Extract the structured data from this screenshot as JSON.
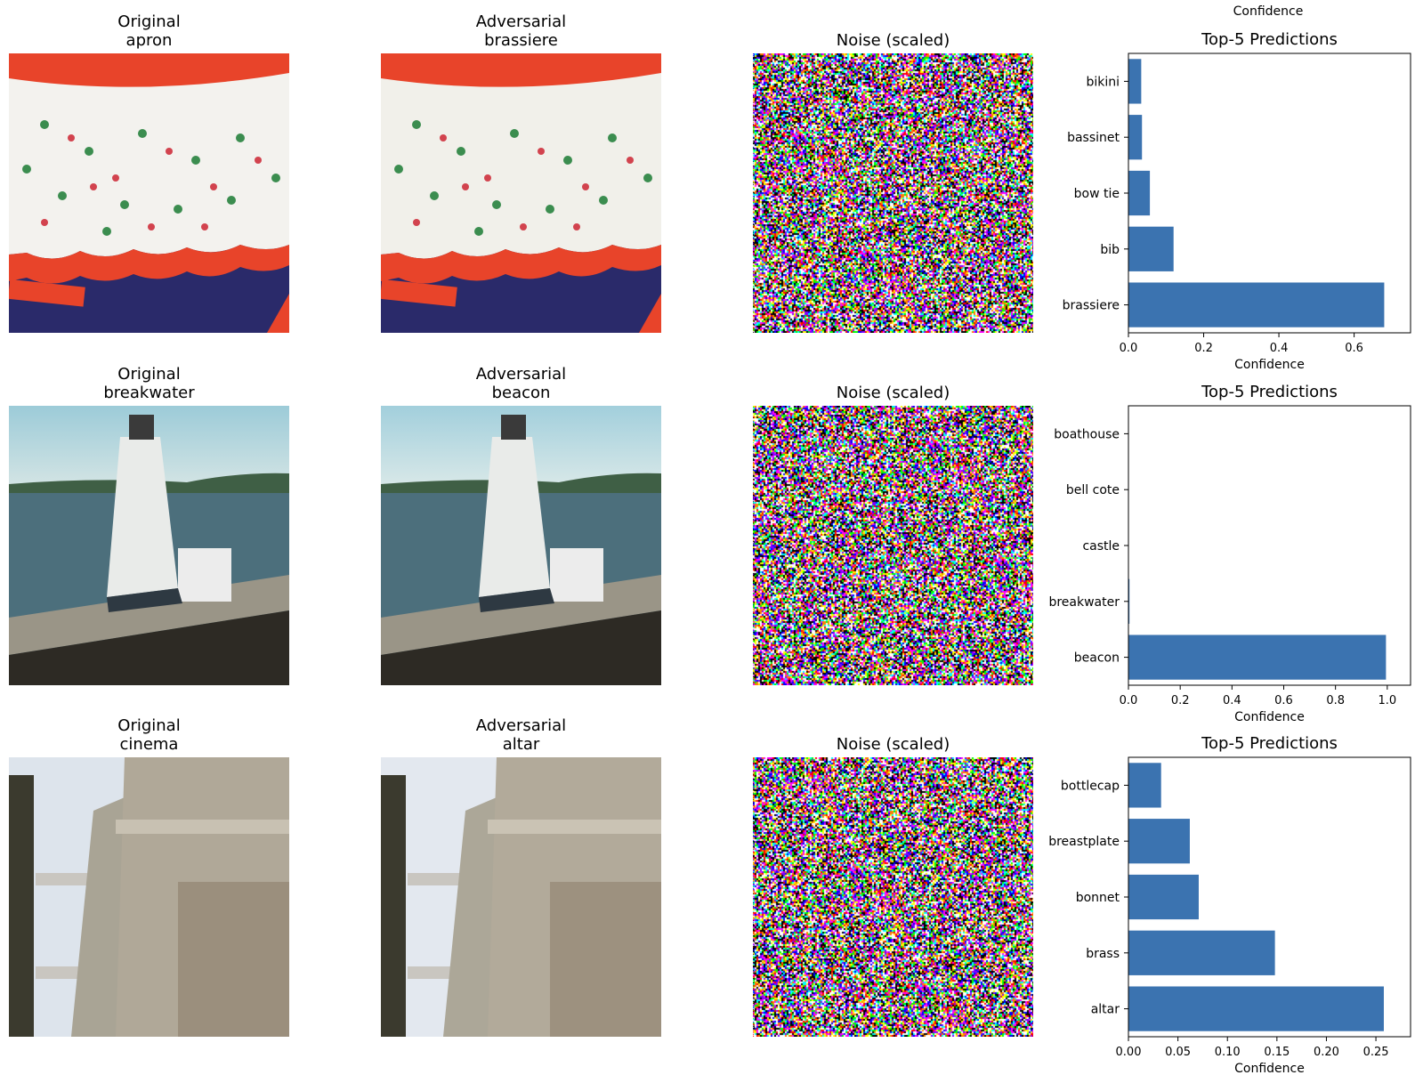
{
  "figure": {
    "top_partial_xlabel": "Confidence",
    "rows": [
      {
        "original_title": "Original\napron",
        "adversarial_title": "Adversarial\nbrassiere",
        "noise_title": "Noise (scaled)"
      },
      {
        "original_title": "Original\nbreakwater",
        "adversarial_title": "Adversarial\nbeacon",
        "noise_title": "Noise (scaled)"
      },
      {
        "original_title": "Original\ncinema",
        "adversarial_title": "Adversarial\naltar",
        "noise_title": "Noise (scaled)"
      }
    ]
  },
  "colors": {
    "bar": "#3b73b0"
  },
  "chart_data": [
    {
      "type": "bar",
      "orientation": "horizontal",
      "title": "Top-5 Predictions",
      "xlabel": "Confidence",
      "categories": [
        "brassiere",
        "bib",
        "bow tie",
        "bassinet",
        "bikini"
      ],
      "values": [
        0.68,
        0.12,
        0.057,
        0.036,
        0.034
      ],
      "xlim": [
        0,
        0.75
      ],
      "xticks": [
        0.0,
        0.2,
        0.4,
        0.6
      ],
      "xtick_labels": [
        "0.0",
        "0.2",
        "0.4",
        "0.6"
      ]
    },
    {
      "type": "bar",
      "orientation": "horizontal",
      "title": "Top-5 Predictions",
      "xlabel": "Confidence",
      "categories": [
        "beacon",
        "breakwater",
        "castle",
        "bell cote",
        "boathouse"
      ],
      "values": [
        0.995,
        0.004,
        0.0005,
        0.0003,
        0.0002
      ],
      "xlim": [
        0,
        1.09
      ],
      "xticks": [
        0.0,
        0.2,
        0.4,
        0.6,
        0.8,
        1.0
      ],
      "xtick_labels": [
        "0.0",
        "0.2",
        "0.4",
        "0.6",
        "0.8",
        "1.0"
      ]
    },
    {
      "type": "bar",
      "orientation": "horizontal",
      "title": "Top-5 Predictions",
      "xlabel": "Confidence",
      "categories": [
        "altar",
        "brass",
        "bonnet",
        "breastplate",
        "bottlecap"
      ],
      "values": [
        0.258,
        0.148,
        0.071,
        0.062,
        0.033
      ],
      "xlim": [
        0,
        0.285
      ],
      "xticks": [
        0.0,
        0.05,
        0.1,
        0.15,
        0.2,
        0.25
      ],
      "xtick_labels": [
        "0.00",
        "0.05",
        "0.10",
        "0.15",
        "0.20",
        "0.25"
      ]
    }
  ]
}
